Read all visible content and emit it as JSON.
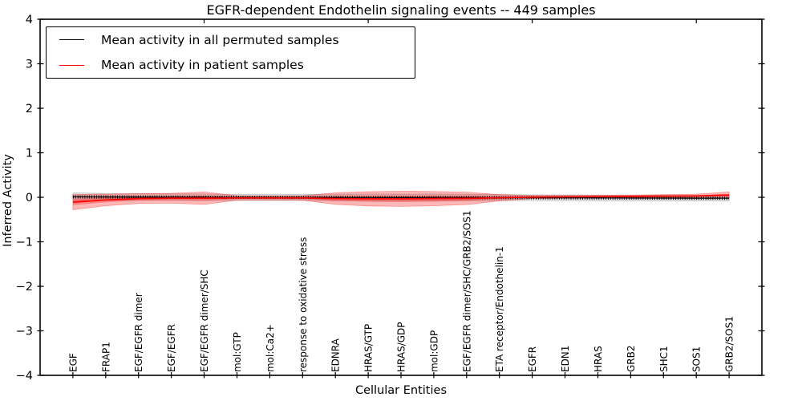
{
  "chart_data": {
    "type": "line",
    "title": "EGFR-dependent Endothelin signaling events -- 449 samples",
    "xlabel": "Cellular Entities",
    "ylabel": "Inferred Activity",
    "ylim": [
      -4,
      4
    ],
    "xlim": [
      0,
      22
    ],
    "yticks": [
      -4,
      -3,
      -2,
      -1,
      0,
      1,
      2,
      3,
      4
    ],
    "top_ticks": [
      5,
      10,
      15,
      20
    ],
    "grid": false,
    "legend_position": "upper left",
    "categories": [
      "EGF",
      "FRAP1",
      "EGF/EGFR dimer",
      "EGF/EGFR",
      "EGF/EGFR dimer/SHC",
      "mol:GTP",
      "mol:Ca2+",
      "response to oxidative stress",
      "EDNRA",
      "HRAS/GTP",
      "HRAS/GDP",
      "mol:GDP",
      "EGF/EGFR dimer/SHC/GRB2/SOS1",
      "ETA receptor/Endothelin-1",
      "EGFR",
      "EDN1",
      "HRAS",
      "GRB2",
      "SHC1",
      "SOS1",
      "GRB2/SOS1"
    ],
    "series": [
      {
        "name": "Mean activity in all permuted samples",
        "color": "#000000",
        "band_color": "rgba(0,0,0,0.13)",
        "values": [
          0.01,
          0.008,
          0.005,
          0.003,
          0.0,
          -0.002,
          -0.003,
          -0.004,
          -0.005,
          -0.006,
          -0.007,
          -0.007,
          -0.006,
          -0.008,
          -0.01,
          -0.012,
          -0.014,
          -0.016,
          -0.018,
          -0.02,
          -0.02
        ],
        "band_halfwidth": [
          0.09,
          0.08,
          0.075,
          0.075,
          0.075,
          0.07,
          0.07,
          0.07,
          0.075,
          0.08,
          0.08,
          0.08,
          0.075,
          0.07,
          0.065,
          0.065,
          0.065,
          0.065,
          0.065,
          0.06,
          0.06
        ],
        "marker": "tick"
      },
      {
        "name": "Mean activity in patient samples",
        "color": "#ff0000",
        "band_color": "rgba(255,0,0,0.28)",
        "values": [
          -0.11,
          -0.06,
          -0.03,
          -0.02,
          -0.02,
          -0.015,
          -0.015,
          -0.015,
          -0.03,
          -0.035,
          -0.035,
          -0.03,
          -0.025,
          -0.01,
          0.005,
          0.01,
          0.015,
          0.02,
          0.025,
          0.03,
          0.05
        ],
        "band_halfwidth": [
          0.17,
          0.13,
          0.11,
          0.11,
          0.14,
          0.05,
          0.045,
          0.05,
          0.13,
          0.16,
          0.17,
          0.16,
          0.14,
          0.07,
          0.035,
          0.03,
          0.03,
          0.03,
          0.035,
          0.04,
          0.07
        ],
        "inner_band_ratio": 0.4,
        "marker": "none"
      }
    ]
  }
}
